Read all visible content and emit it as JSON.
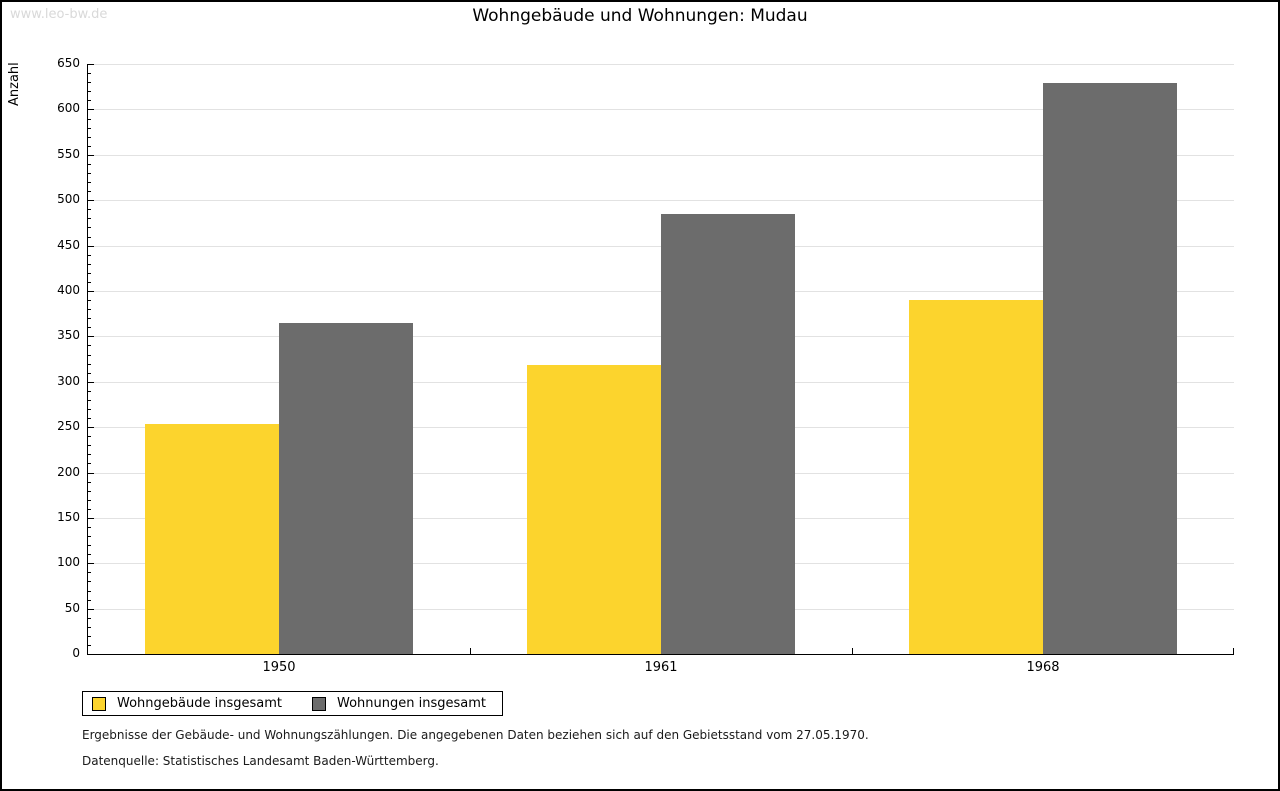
{
  "watermark": "www.leo-bw.de",
  "chart_data": {
    "type": "bar",
    "title": "Wohngebäude und Wohnungen: Mudau",
    "xlabel": "",
    "ylabel": "Anzahl",
    "categories": [
      "1950",
      "1961",
      "1968"
    ],
    "series": [
      {
        "name": "Wohngebäude insgesamt",
        "color": "#FCD42D",
        "values": [
          253,
          318,
          390
        ]
      },
      {
        "name": "Wohnungen insgesamt",
        "color": "#6C6C6C",
        "values": [
          365,
          485,
          629
        ]
      }
    ],
    "ylim": [
      0,
      650
    ],
    "y_major_step": 50,
    "y_minor_step": 10,
    "grid": "horizontal-only",
    "gridline_color": "#e2e2e2",
    "legend_position": "bottom-left"
  },
  "footer": {
    "line1": "Ergebnisse der Gebäude- und Wohnungszählungen. Die angegebenen Daten beziehen sich auf den Gebietsstand vom 27.05.1970.",
    "line2": "Datenquelle: Statistisches Landesamt Baden-Württemberg."
  }
}
